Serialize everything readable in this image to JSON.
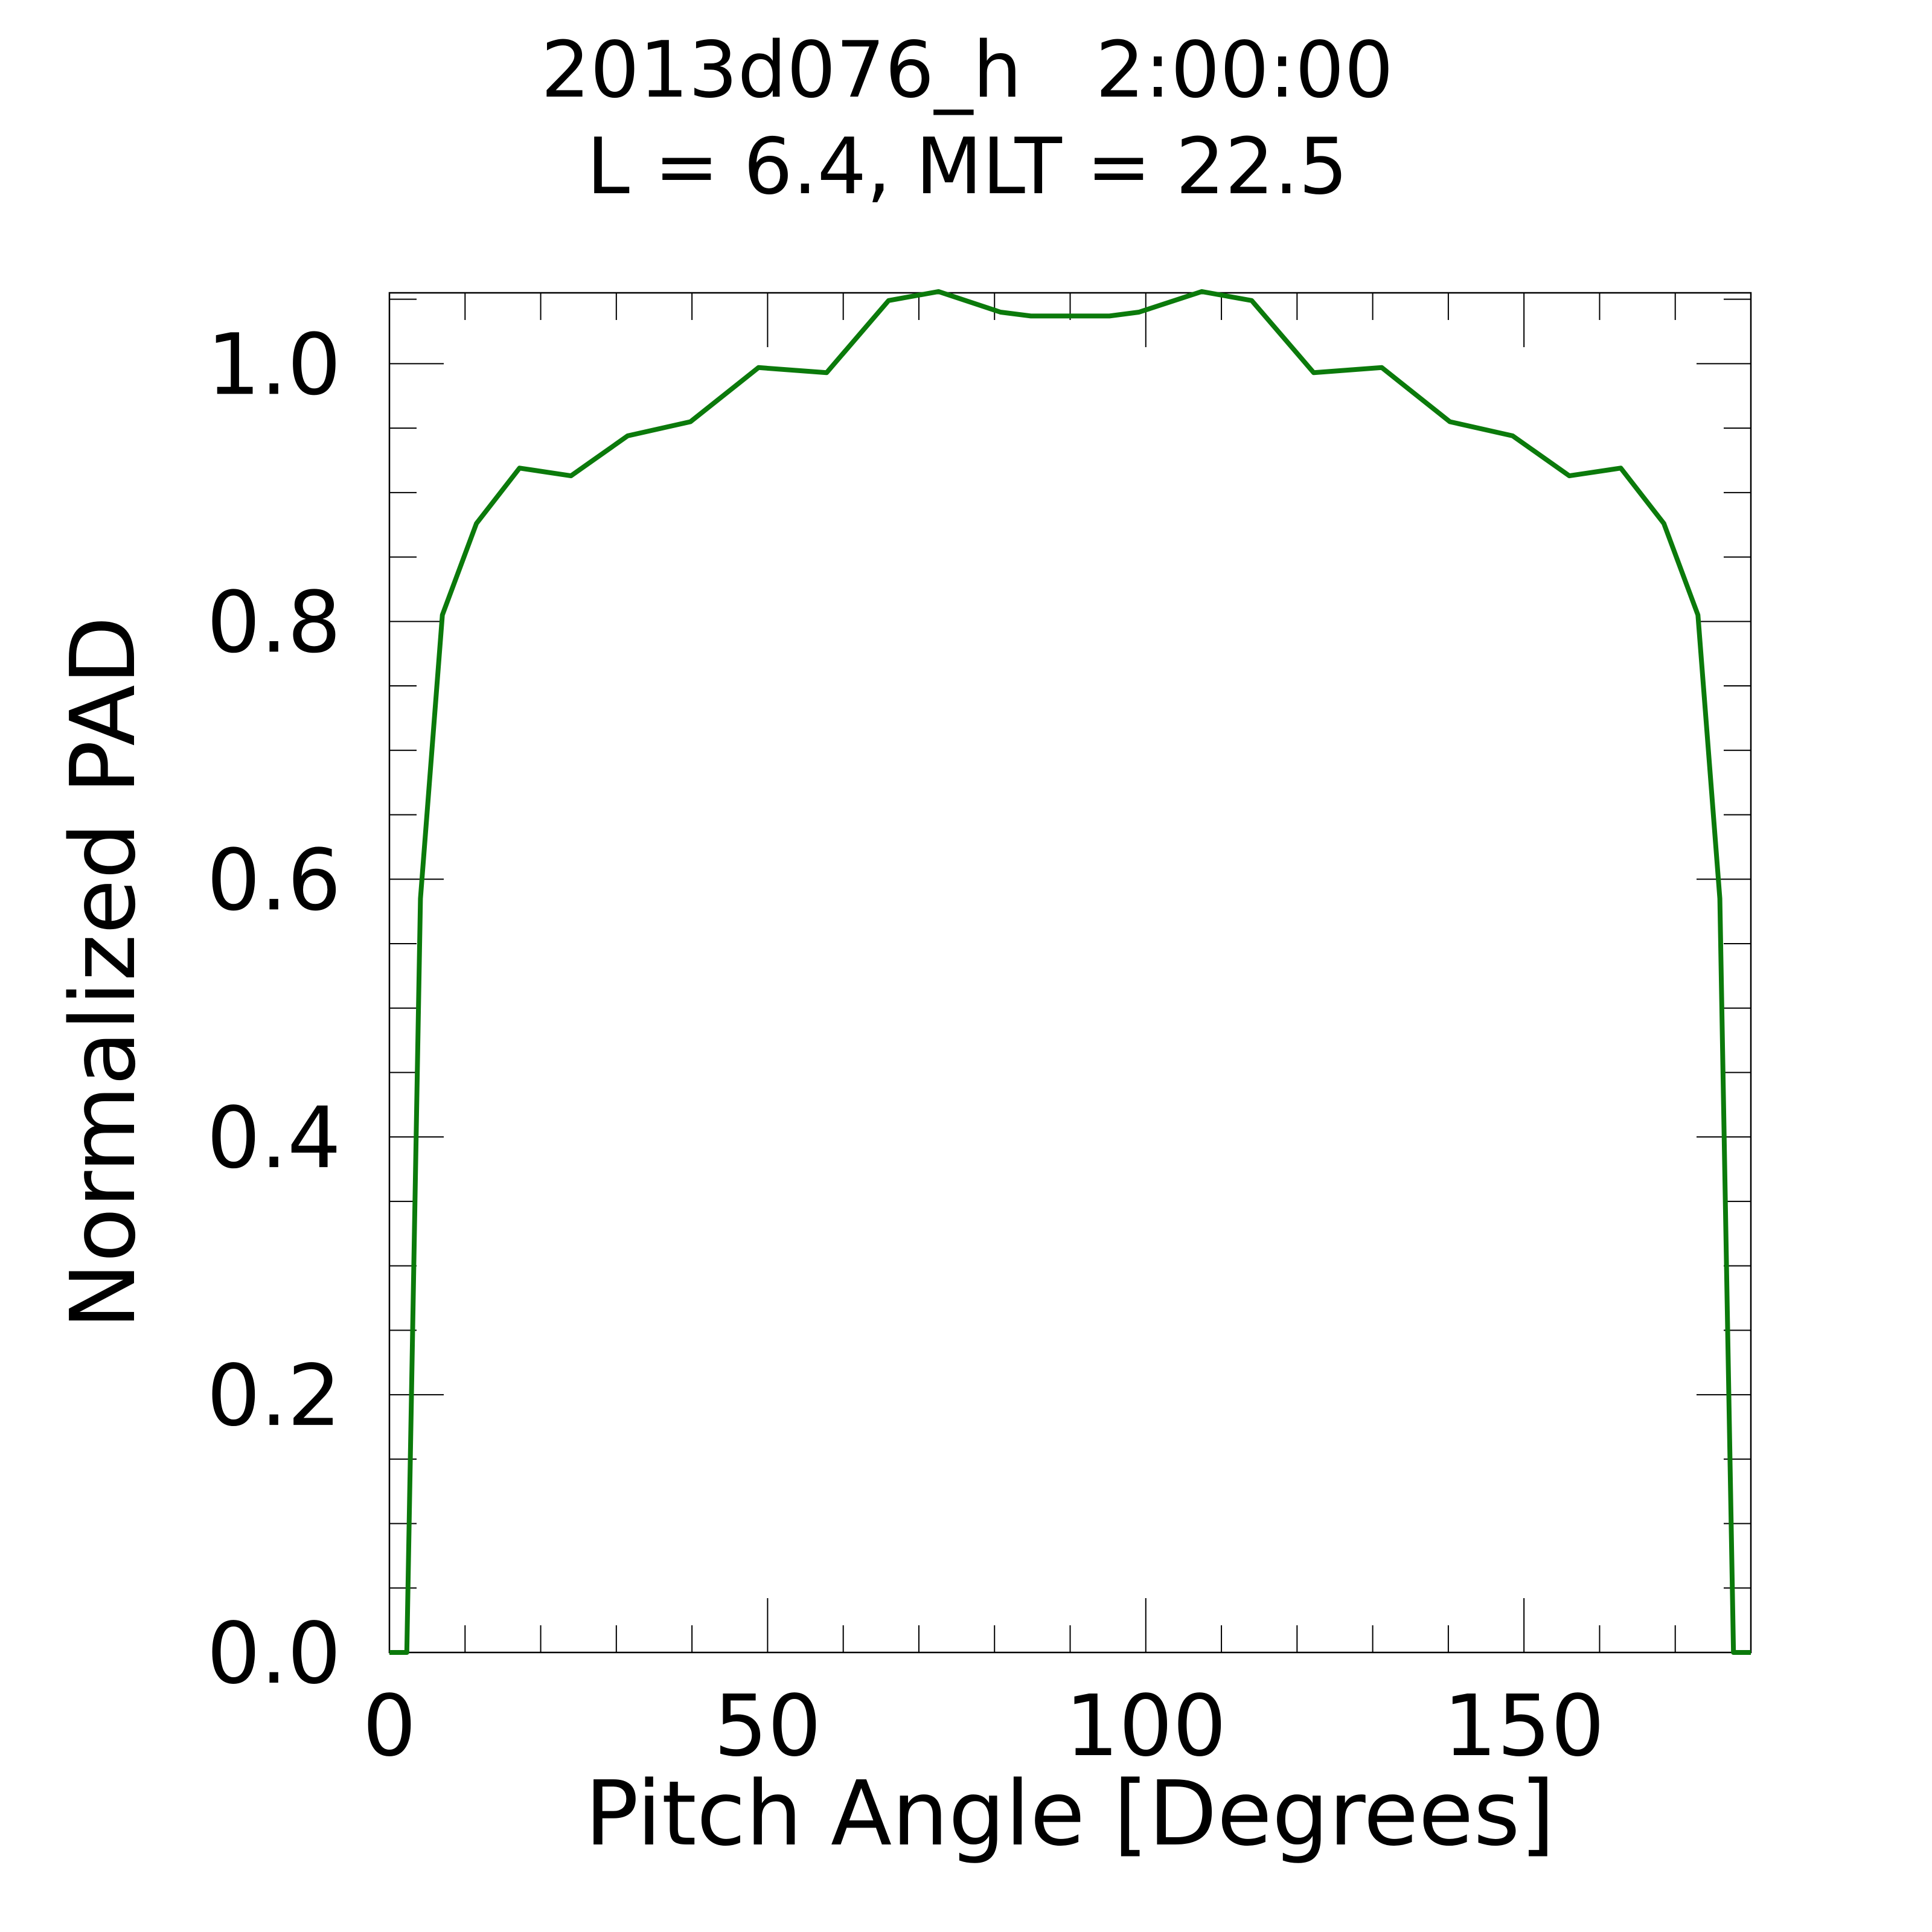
{
  "chart_data": {
    "type": "line",
    "title_line1": "2013d076_h   2:00:00",
    "title_line2": "L = 6.4, MLT = 22.5",
    "xlabel": "Pitch Angle [Degrees]",
    "ylabel": "Normalized PAD",
    "xlim": [
      0,
      180
    ],
    "ylim": [
      0,
      1.055
    ],
    "x_ticks": [
      0,
      50,
      100,
      150
    ],
    "x_tick_labels": [
      "0",
      "50",
      "100",
      "150"
    ],
    "y_ticks": [
      0.0,
      0.2,
      0.4,
      0.6,
      0.8,
      1.0
    ],
    "y_tick_labels": [
      "0.0",
      "0.2",
      "0.4",
      "0.6",
      "0.8",
      "1.0"
    ],
    "x_minor_step": 10,
    "y_minor_step": 0.05,
    "grid": false,
    "legend": "none",
    "series": [
      {
        "color": "#0b7a0b",
        "x": [
          0,
          2.3,
          4.1,
          7.0,
          11.5,
          17.2,
          24.0,
          31.5,
          39.8,
          48.8,
          57.8,
          66.0,
          72.6,
          80.8,
          84.8,
          95.2,
          99.1,
          107.4,
          114.0,
          122.2,
          131.2,
          140.2,
          148.5,
          156.0,
          162.8,
          168.5,
          173.0,
          175.9,
          177.7,
          180
        ],
        "y": [
          0.0,
          0.0,
          0.585,
          0.805,
          0.876,
          0.919,
          0.913,
          0.944,
          0.955,
          0.997,
          0.993,
          1.049,
          1.056,
          1.04,
          1.037,
          1.037,
          1.04,
          1.056,
          1.049,
          0.993,
          0.997,
          0.955,
          0.944,
          0.913,
          0.919,
          0.876,
          0.805,
          0.585,
          0.0,
          0.0
        ]
      }
    ]
  }
}
